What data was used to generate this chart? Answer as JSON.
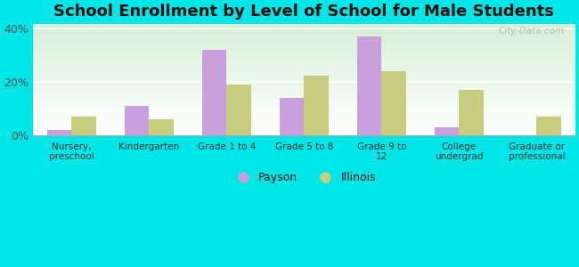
{
  "title": "School Enrollment by Level of School for Male Students",
  "categories": [
    "Nursery,\npreschool",
    "Kindergarten",
    "Grade 1 to 4",
    "Grade 5 to 8",
    "Grade 9 to\n12",
    "College\nundergrad",
    "Graduate or\nprofessional"
  ],
  "payson": [
    2.0,
    11.0,
    32.0,
    14.0,
    37.0,
    3.0,
    0.0
  ],
  "illinois": [
    7.0,
    6.0,
    19.0,
    22.5,
    24.0,
    17.0,
    7.0
  ],
  "payson_color": "#c9a0dc",
  "illinois_color": "#c8cc7e",
  "background_color": "#00e5e5",
  "ylim": [
    0,
    42
  ],
  "yticks": [
    0,
    20,
    40
  ],
  "ytick_labels": [
    "0%",
    "20%",
    "40%"
  ],
  "title_fontsize": 13,
  "legend_payson": "Payson",
  "legend_illinois": "Illinois",
  "watermark": "City-Data.com",
  "bar_width": 0.32,
  "grid_color": "#ccddcc",
  "spine_color": "#aaaaaa"
}
